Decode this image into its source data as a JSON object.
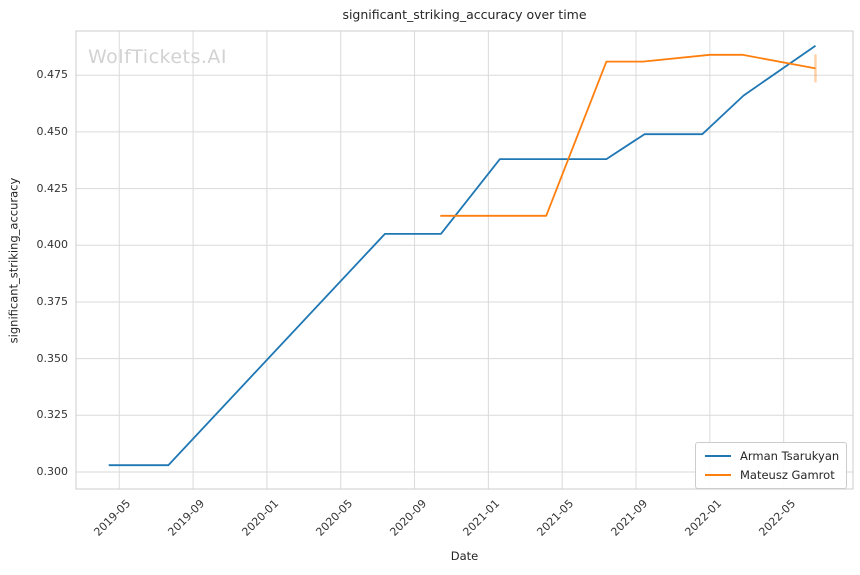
{
  "title": "significant_striking_accuracy over time",
  "watermark": "WolfTickets.AI",
  "chart_data": {
    "type": "line",
    "title": "significant_striking_accuracy over time",
    "xlabel": "Date",
    "ylabel": "significant_striking_accuracy",
    "grid": true,
    "legend_position": "lower right",
    "x_tick_labels": [
      "2019-05",
      "2019-09",
      "2020-01",
      "2020-05",
      "2020-09",
      "2021-01",
      "2021-05",
      "2021-09",
      "2022-01",
      "2022-05"
    ],
    "y_ticks": [
      0.3,
      0.325,
      0.35,
      0.375,
      0.4,
      0.425,
      0.45,
      0.475
    ],
    "xlim": [
      "2019-02-21",
      "2022-08-24"
    ],
    "ylim": [
      0.2925,
      0.4945
    ],
    "series": [
      {
        "name": "Arman Tsarukyan",
        "color": "#1f77b4",
        "end_marker": "none",
        "points": [
          [
            "2019-04-14",
            0.303
          ],
          [
            "2019-07-21",
            0.303
          ],
          [
            "2020-07-13",
            0.405
          ],
          [
            "2020-10-14",
            0.405
          ],
          [
            "2021-01-20",
            0.438
          ],
          [
            "2021-07-13",
            0.438
          ],
          [
            "2021-09-15",
            0.449
          ],
          [
            "2021-12-19",
            0.449
          ],
          [
            "2022-02-26",
            0.466
          ],
          [
            "2022-06-23",
            0.488
          ]
        ]
      },
      {
        "name": "Mateusz Gamrot",
        "color": "#ff7f0e",
        "end_marker": "vertical-tick",
        "points": [
          [
            "2020-10-13",
            0.413
          ],
          [
            "2021-04-05",
            0.413
          ],
          [
            "2021-07-13",
            0.481
          ],
          [
            "2021-09-12",
            0.481
          ],
          [
            "2022-01-01",
            0.484
          ],
          [
            "2022-02-24",
            0.484
          ],
          [
            "2022-06-23",
            0.478
          ]
        ]
      }
    ]
  },
  "colors": {
    "grid": "#dadada",
    "spine": "#cccccc",
    "tick_text": "#333333",
    "text": "#262626",
    "watermark": "#d2d2d2"
  }
}
